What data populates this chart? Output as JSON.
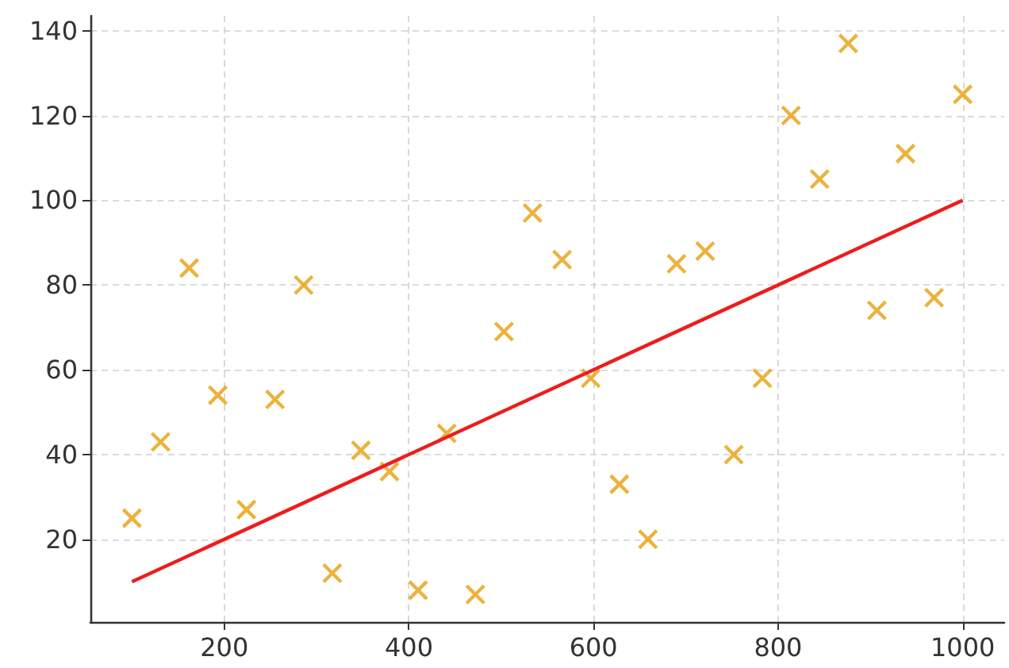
{
  "chart_data": {
    "type": "scatter",
    "xlim": [
      55,
      1045
    ],
    "ylim": [
      0.5,
      143.5
    ],
    "xticks": [
      200,
      400,
      600,
      800,
      1000
    ],
    "yticks": [
      20,
      40,
      60,
      80,
      100,
      120,
      140
    ],
    "grid": true,
    "series": [
      {
        "marker": "cross",
        "color": "#e6a00e",
        "x": [
          100,
          131,
          162,
          193,
          224,
          255,
          286,
          317,
          348,
          379,
          410,
          441,
          472,
          503,
          534,
          566,
          597,
          628,
          659,
          690,
          721,
          752,
          783,
          814,
          845,
          876,
          907,
          938,
          969,
          1000
        ],
        "values": [
          25,
          43,
          84,
          54,
          27,
          53,
          80,
          12,
          41,
          36,
          8,
          45,
          7,
          69,
          97,
          86,
          58,
          33,
          20,
          85,
          88,
          40,
          58,
          120,
          105,
          137,
          74,
          111,
          77,
          125
        ]
      },
      {
        "type": "line",
        "marker": "none",
        "line_style": "solid",
        "color": "#ee1c1c",
        "x": [
          100,
          1000
        ],
        "values": [
          10,
          100
        ]
      }
    ]
  }
}
